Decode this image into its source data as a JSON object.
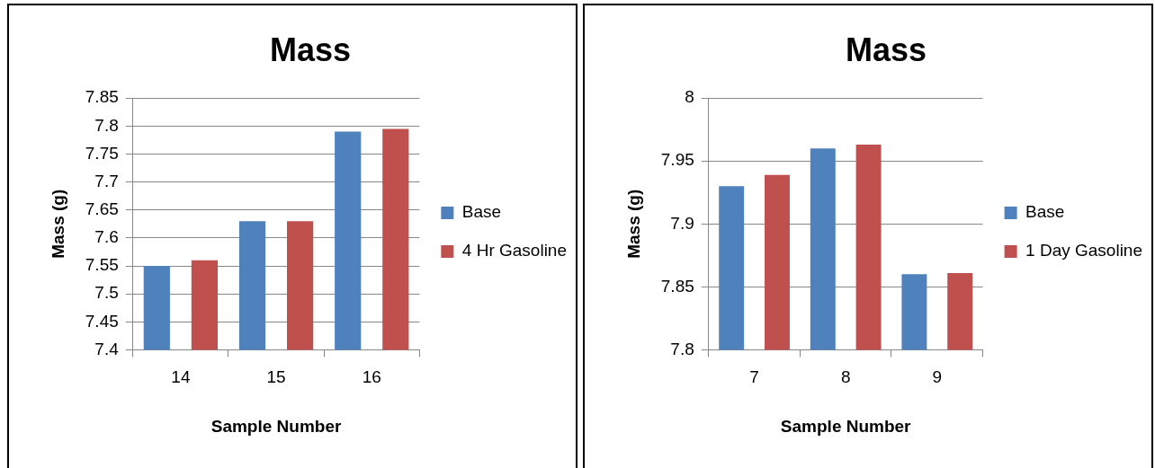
{
  "chart_data": [
    {
      "type": "bar",
      "title": "Mass",
      "xlabel": "Sample Number",
      "ylabel": "Mass (g)",
      "categories": [
        "14",
        "15",
        "16"
      ],
      "series": [
        {
          "name": "Base",
          "color": "#4f81bd",
          "values": [
            7.55,
            7.63,
            7.79
          ]
        },
        {
          "name": "4 Hr Gasoline",
          "color": "#c0504d",
          "values": [
            7.56,
            7.63,
            7.795
          ]
        }
      ],
      "ylim": [
        7.4,
        7.85
      ],
      "yticks": [
        7.4,
        7.45,
        7.5,
        7.55,
        7.6,
        7.65,
        7.7,
        7.75,
        7.8,
        7.85
      ],
      "grid": "y",
      "legend": "right"
    },
    {
      "type": "bar",
      "title": "Mass",
      "xlabel": "Sample Number",
      "ylabel": "Mass (g)",
      "categories": [
        "7",
        "8",
        "9"
      ],
      "series": [
        {
          "name": "Base",
          "color": "#4f81bd",
          "values": [
            7.93,
            7.96,
            7.86
          ]
        },
        {
          "name": "1 Day Gasoline",
          "color": "#c0504d",
          "values": [
            7.939,
            7.963,
            7.861
          ]
        }
      ],
      "ylim": [
        7.8,
        8
      ],
      "yticks": [
        7.8,
        7.85,
        7.9,
        7.95,
        8
      ],
      "grid": "y",
      "legend": "right"
    }
  ]
}
